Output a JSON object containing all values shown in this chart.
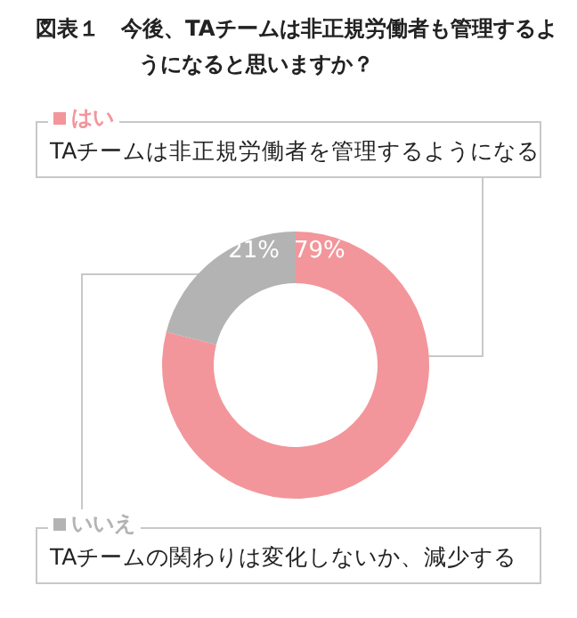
{
  "chart_data": {
    "type": "donut",
    "title": "図表１　今後、TAチームは非正規労働者も管理するようになると思いますか？",
    "categories": [
      "はい",
      "いいえ"
    ],
    "values": [
      79,
      21
    ],
    "colors": [
      "#f2969b",
      "#b3b3b3"
    ],
    "value_labels": [
      "79%",
      "21%"
    ],
    "annotations": [
      "TAチームは非正規労働者を管理するようになる",
      "TAチームの関わりは変化しないか、減少する"
    ],
    "legend": "left"
  }
}
